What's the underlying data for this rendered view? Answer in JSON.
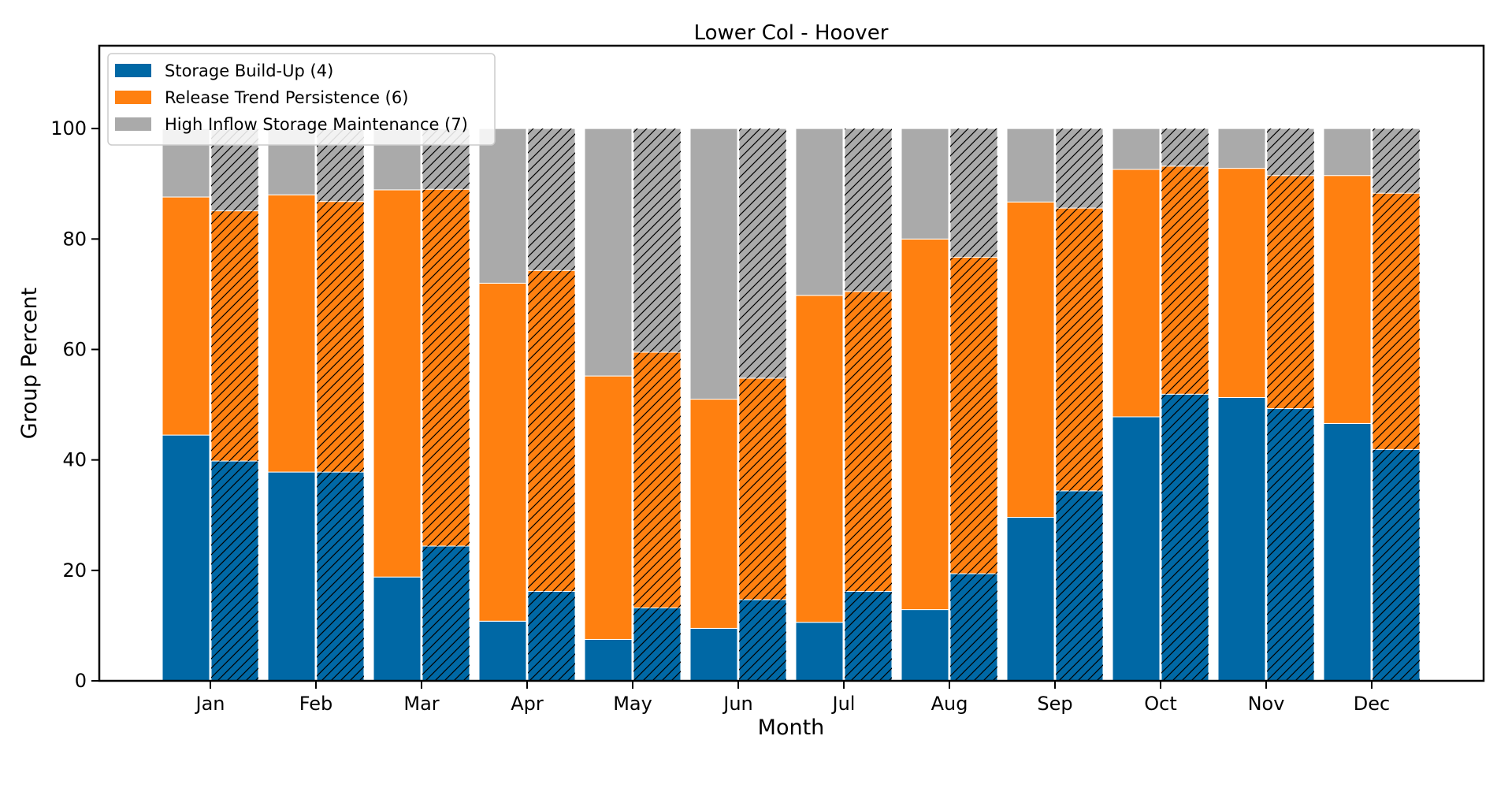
{
  "chart_data": {
    "type": "bar",
    "title": "Lower Col - Hoover",
    "xlabel": "Month",
    "ylabel": "Group Percent",
    "ylim": [
      0,
      115
    ],
    "yticks": [
      0,
      20,
      40,
      60,
      80,
      100
    ],
    "grid": false,
    "legend_position": "top-left",
    "categories": [
      "Jan",
      "Feb",
      "Mar",
      "Apr",
      "May",
      "Jun",
      "Jul",
      "Aug",
      "Sep",
      "Oct",
      "Nov",
      "Dec"
    ],
    "bars_per_category": [
      "solid",
      "hatched"
    ],
    "series": [
      {
        "name": "Storage Build-Up (4)",
        "color": "#0068a5",
        "solid": [
          44.5,
          37.8,
          18.8,
          10.8,
          7.5,
          9.5,
          10.6,
          12.9,
          29.6,
          47.8,
          51.3,
          46.6
        ],
        "hatched": [
          39.8,
          37.8,
          24.4,
          16.2,
          13.2,
          14.7,
          16.2,
          19.4,
          34.4,
          51.9,
          49.3,
          41.9
        ]
      },
      {
        "name": "Release Trend Persistence (6)",
        "color": "#ff8010",
        "solid": [
          43.1,
          50.2,
          70.1,
          61.2,
          47.7,
          41.5,
          59.2,
          67.1,
          57.1,
          44.8,
          41.5,
          44.9
        ],
        "hatched": [
          45.3,
          49.0,
          64.6,
          58.1,
          46.3,
          40.1,
          54.3,
          57.3,
          51.2,
          41.3,
          42.2,
          46.4
        ]
      },
      {
        "name": "High Inflow Storage Maintenance (7)",
        "color": "#aaaaaa",
        "solid": [
          12.4,
          12.0,
          11.1,
          28.0,
          44.8,
          49.0,
          30.2,
          20.0,
          13.3,
          7.4,
          7.2,
          8.5
        ],
        "hatched": [
          14.9,
          13.2,
          11.0,
          25.7,
          40.5,
          45.2,
          29.5,
          23.3,
          14.4,
          6.8,
          8.5,
          11.7
        ]
      }
    ]
  }
}
